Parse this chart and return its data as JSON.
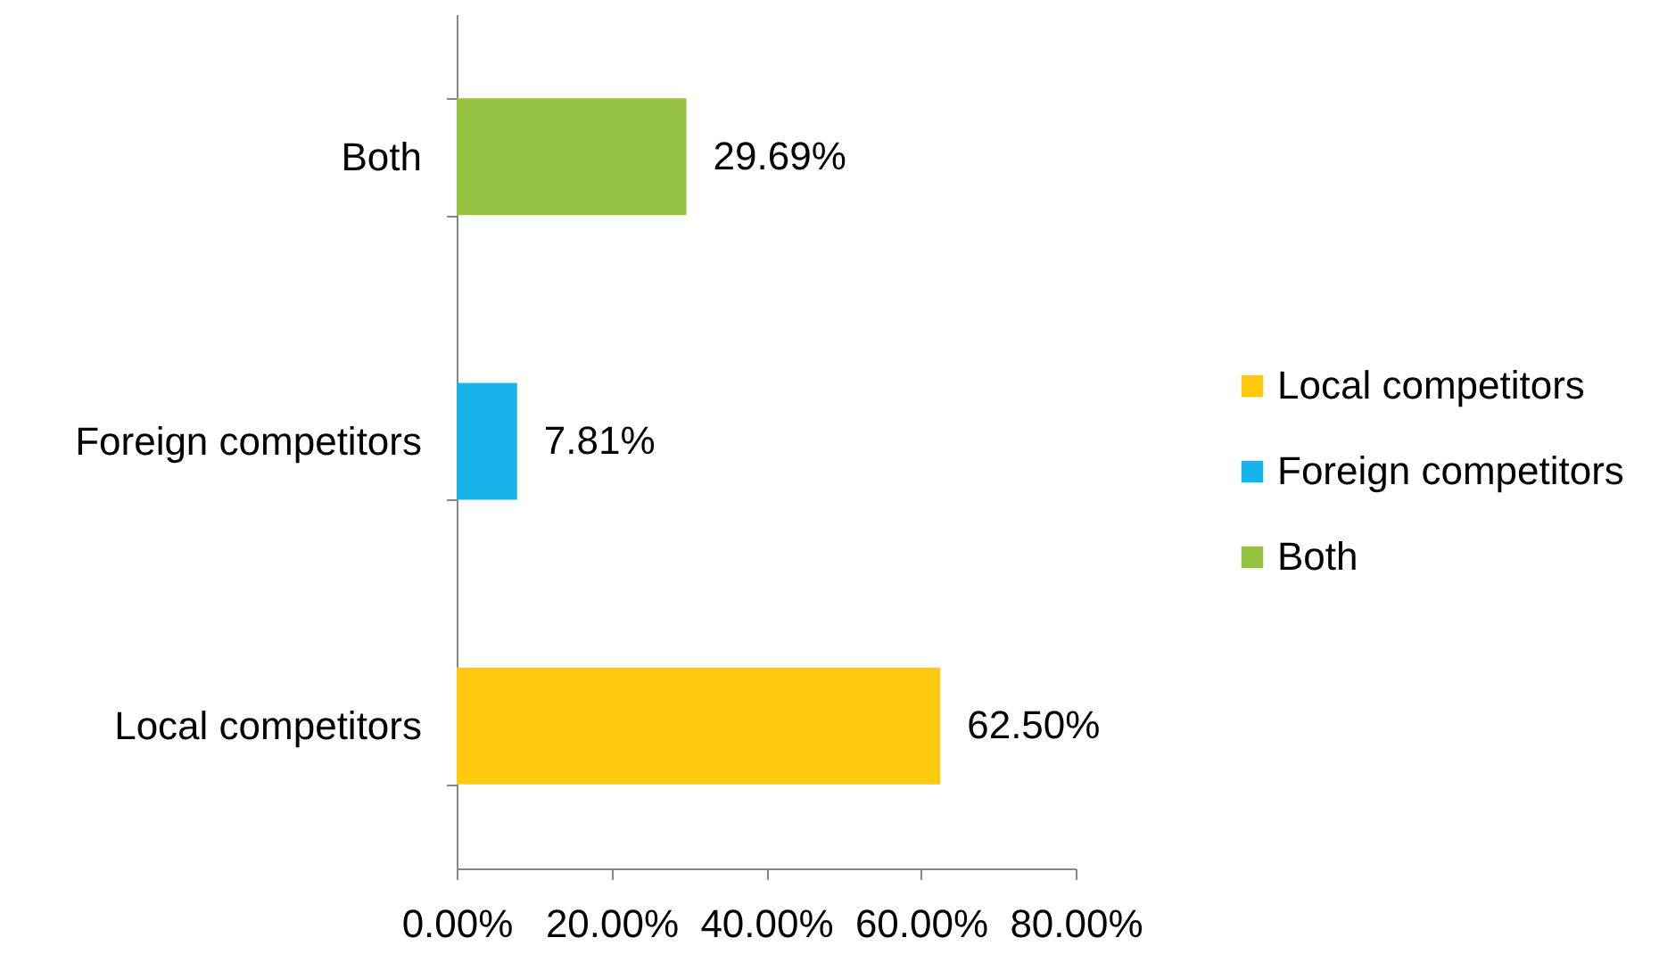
{
  "chart_data": {
    "type": "bar",
    "orientation": "horizontal",
    "stacked": true,
    "categories": [
      "Both",
      "Foreign competitors",
      "Local competitors"
    ],
    "series": [
      {
        "name": "Local competitors",
        "color": "#ffc90d",
        "values": [
          null,
          null,
          62.5
        ],
        "value_labels": [
          null,
          null,
          "62.50%"
        ]
      },
      {
        "name": "Foreign competitors",
        "color": "#17b4ea",
        "values": [
          null,
          7.81,
          null
        ],
        "value_labels": [
          null,
          "7.81%",
          null
        ]
      },
      {
        "name": "Both",
        "color": "#94c341",
        "values": [
          29.69,
          null,
          null
        ],
        "value_labels": [
          "29.69%",
          null,
          null
        ]
      }
    ],
    "xlim": [
      0,
      80
    ],
    "xticks": [
      {
        "value": 0,
        "label": "0.00%"
      },
      {
        "value": 20,
        "label": "20.00%"
      },
      {
        "value": 40,
        "label": "40.00%"
      },
      {
        "value": 60,
        "label": "60.00%"
      },
      {
        "value": 80,
        "label": "80.00%"
      }
    ],
    "legend": "right"
  }
}
